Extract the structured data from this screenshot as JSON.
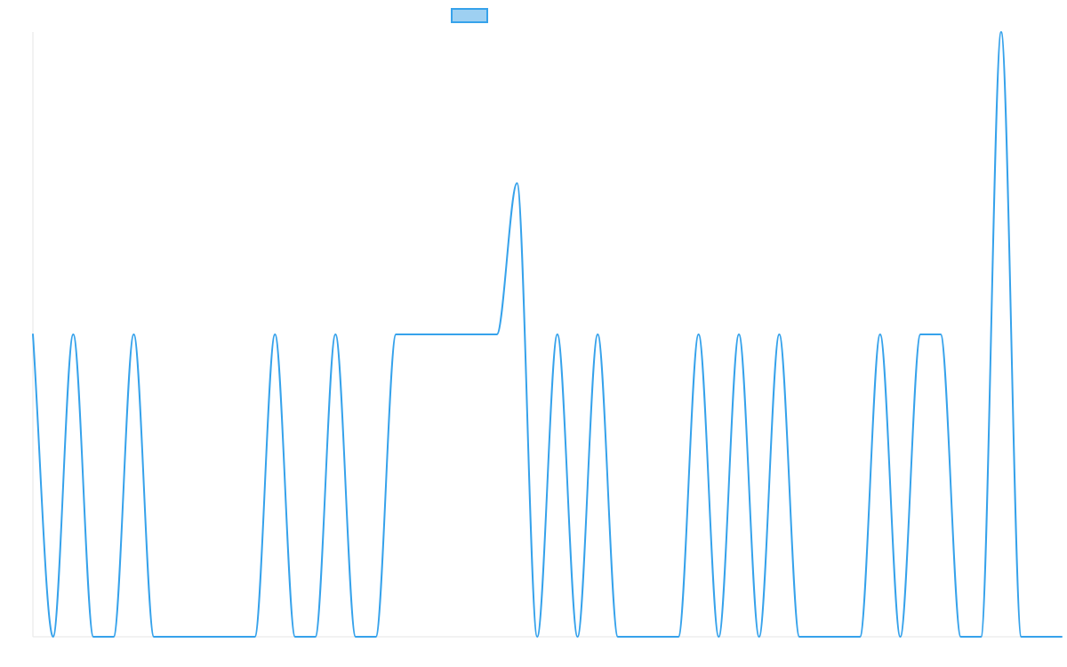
{
  "colors": {
    "line": "#36a2eb",
    "swatch_fill": "#9ed0f2",
    "axis": "#e6e6e6"
  },
  "chart_data": {
    "type": "line",
    "title": "",
    "xlabel": "",
    "ylabel": "",
    "grid": false,
    "legend_position": "top",
    "ylim": [
      0,
      2
    ],
    "x": [
      0,
      1,
      2,
      3,
      4,
      5,
      6,
      7,
      8,
      9,
      10,
      11,
      12,
      13,
      14,
      15,
      16,
      17,
      18,
      19,
      20,
      21,
      22,
      23,
      24,
      25,
      26,
      27,
      28,
      29,
      30,
      31,
      32,
      33,
      34,
      35,
      36,
      37,
      38,
      39,
      40,
      41,
      42,
      43,
      44,
      45,
      46,
      47,
      48,
      49,
      50,
      51
    ],
    "series": [
      {
        "name": "",
        "values": [
          1,
          0,
          1,
          0,
          0,
          1,
          0,
          0,
          0,
          0,
          0,
          0,
          1,
          0,
          0,
          1,
          0,
          0,
          1,
          1,
          1,
          1,
          1,
          1,
          1.5,
          0,
          1,
          0,
          1,
          0,
          0,
          0,
          0,
          1,
          0,
          1,
          0,
          1,
          0,
          0,
          0,
          0,
          1,
          0,
          1,
          1,
          0,
          0,
          2,
          0,
          0,
          0
        ]
      }
    ]
  }
}
